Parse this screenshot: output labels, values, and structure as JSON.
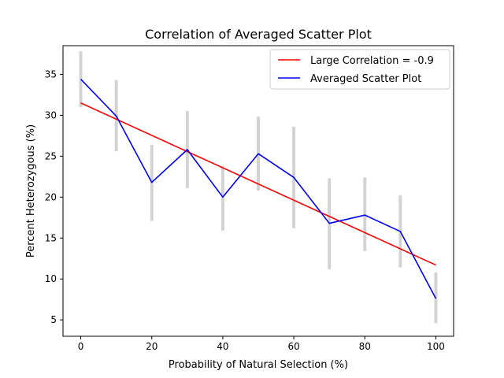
{
  "chart_data": {
    "type": "line",
    "title": "Correlation of Averaged Scatter Plot",
    "xlabel": "Probability of Natural Selection (%)",
    "ylabel": "Percent Heterozygous (%)",
    "xlim": [
      -5,
      105
    ],
    "ylim": [
      3,
      38.5
    ],
    "xticks": [
      0,
      20,
      40,
      60,
      80,
      100
    ],
    "yticks": [
      5,
      10,
      15,
      20,
      25,
      30,
      35
    ],
    "grid": false,
    "legend_position": "upper right",
    "x": [
      0,
      10,
      20,
      30,
      40,
      50,
      60,
      70,
      80,
      90,
      100
    ],
    "series": [
      {
        "name": "Large Correlation = -0.9",
        "color": "#ff0000",
        "style": "line",
        "x": [
          0,
          100
        ],
        "y": [
          31.5,
          11.7
        ]
      },
      {
        "name": "Averaged Scatter Plot",
        "color": "#0000ff",
        "style": "line",
        "x": [
          0,
          10,
          20,
          30,
          40,
          50,
          60,
          70,
          80,
          90,
          100
        ],
        "y": [
          34.4,
          29.9,
          21.8,
          25.8,
          20.0,
          25.3,
          22.4,
          16.8,
          17.8,
          15.8,
          7.6
        ]
      }
    ],
    "error_bars": {
      "color": "#d3d3d3",
      "x": [
        0,
        10,
        20,
        30,
        40,
        50,
        60,
        70,
        80,
        90,
        100
      ],
      "low": [
        31.0,
        25.6,
        17.1,
        21.1,
        15.9,
        20.8,
        16.2,
        11.2,
        13.4,
        11.4,
        4.6
      ],
      "high": [
        37.8,
        34.3,
        26.4,
        30.5,
        23.8,
        29.8,
        28.6,
        22.3,
        22.4,
        20.2,
        10.8
      ]
    }
  }
}
